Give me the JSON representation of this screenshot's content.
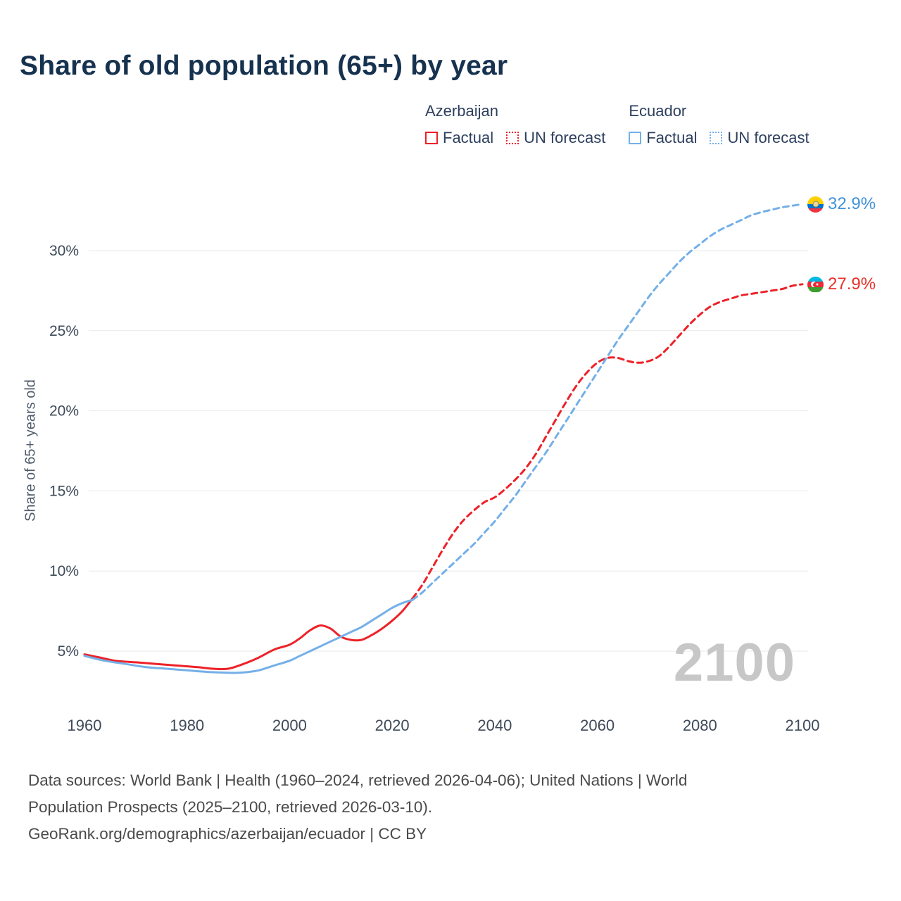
{
  "title": "Share of old population (65+) by year",
  "legend": {
    "groups": [
      {
        "country": "Azerbaijan",
        "factual_label": "Factual",
        "forecast_label": "UN forecast",
        "color": "#ed2228"
      },
      {
        "country": "Ecuador",
        "factual_label": "Factual",
        "forecast_label": "UN forecast",
        "color": "#74b0e8"
      }
    ]
  },
  "end_labels": [
    {
      "country": "Ecuador",
      "value": "32.9%",
      "color": "#4292d8"
    },
    {
      "country": "Azerbaijan",
      "value": "27.9%",
      "color": "#e8302a"
    }
  ],
  "watermark": "2100",
  "y_axis": {
    "label": "Share of 65+ years old",
    "ticks": [
      "5%",
      "10%",
      "15%",
      "20%",
      "25%",
      "30%"
    ],
    "tick_values": [
      5,
      10,
      15,
      20,
      25,
      30
    ]
  },
  "x_axis": {
    "ticks": [
      1960,
      1980,
      2000,
      2020,
      2040,
      2060,
      2080,
      2100
    ]
  },
  "footer": {
    "lines": [
      "Data sources: World Bank | Health (1960–2024, retrieved 2026-04-06); United Nations | World",
      "Population Prospects (2025–2100, retrieved 2026-03-10).",
      "GeoRank.org/demographics/azerbaijan/ecuador | CC BY"
    ]
  },
  "chart_data": {
    "type": "line",
    "title": "Share of old population (65+) by year",
    "xlabel": "",
    "ylabel": "Share of 65+ years old",
    "xlim": [
      1960,
      2100
    ],
    "ylim": [
      3,
      34
    ],
    "grid": "horizontal",
    "legend_position": "top-right",
    "series": [
      {
        "name": "Azerbaijan Factual",
        "color": "#ed2228",
        "style": "solid",
        "points": [
          [
            1960,
            4.8
          ],
          [
            1963,
            4.6
          ],
          [
            1966,
            4.4
          ],
          [
            1970,
            4.3
          ],
          [
            1974,
            4.2
          ],
          [
            1978,
            4.1
          ],
          [
            1982,
            4.0
          ],
          [
            1985,
            3.9
          ],
          [
            1988,
            3.9
          ],
          [
            1991,
            4.2
          ],
          [
            1994,
            4.6
          ],
          [
            1997,
            5.1
          ],
          [
            2000,
            5.4
          ],
          [
            2002,
            5.8
          ],
          [
            2004,
            6.3
          ],
          [
            2006,
            6.6
          ],
          [
            2008,
            6.4
          ],
          [
            2010,
            5.9
          ],
          [
            2012,
            5.7
          ],
          [
            2014,
            5.7
          ],
          [
            2016,
            6.0
          ],
          [
            2018,
            6.4
          ],
          [
            2020,
            6.9
          ],
          [
            2022,
            7.5
          ],
          [
            2024,
            8.3
          ]
        ]
      },
      {
        "name": "Azerbaijan UN forecast",
        "color": "#ed2228",
        "style": "dashed",
        "points": [
          [
            2024,
            8.3
          ],
          [
            2026,
            9.2
          ],
          [
            2028,
            10.3
          ],
          [
            2030,
            11.4
          ],
          [
            2032,
            12.4
          ],
          [
            2034,
            13.2
          ],
          [
            2036,
            13.8
          ],
          [
            2038,
            14.3
          ],
          [
            2040,
            14.6
          ],
          [
            2042,
            15.1
          ],
          [
            2044,
            15.7
          ],
          [
            2046,
            16.4
          ],
          [
            2048,
            17.3
          ],
          [
            2050,
            18.4
          ],
          [
            2052,
            19.5
          ],
          [
            2054,
            20.6
          ],
          [
            2056,
            21.6
          ],
          [
            2058,
            22.4
          ],
          [
            2060,
            23.0
          ],
          [
            2062,
            23.3
          ],
          [
            2064,
            23.3
          ],
          [
            2066,
            23.1
          ],
          [
            2068,
            23.0
          ],
          [
            2070,
            23.1
          ],
          [
            2072,
            23.4
          ],
          [
            2074,
            24.0
          ],
          [
            2076,
            24.7
          ],
          [
            2078,
            25.4
          ],
          [
            2080,
            26.0
          ],
          [
            2082,
            26.5
          ],
          [
            2084,
            26.8
          ],
          [
            2086,
            27.0
          ],
          [
            2088,
            27.2
          ],
          [
            2090,
            27.3
          ],
          [
            2092,
            27.4
          ],
          [
            2094,
            27.5
          ],
          [
            2096,
            27.6
          ],
          [
            2098,
            27.8
          ],
          [
            2100,
            27.9
          ]
        ]
      },
      {
        "name": "Ecuador Factual",
        "color": "#74b0e8",
        "style": "solid",
        "points": [
          [
            1960,
            4.7
          ],
          [
            1964,
            4.4
          ],
          [
            1968,
            4.2
          ],
          [
            1972,
            4.0
          ],
          [
            1976,
            3.9
          ],
          [
            1980,
            3.8
          ],
          [
            1984,
            3.7
          ],
          [
            1988,
            3.65
          ],
          [
            1990,
            3.65
          ],
          [
            1992,
            3.7
          ],
          [
            1994,
            3.8
          ],
          [
            1996,
            4.0
          ],
          [
            1998,
            4.2
          ],
          [
            2000,
            4.4
          ],
          [
            2002,
            4.7
          ],
          [
            2004,
            5.0
          ],
          [
            2006,
            5.3
          ],
          [
            2008,
            5.6
          ],
          [
            2010,
            5.9
          ],
          [
            2012,
            6.2
          ],
          [
            2014,
            6.5
          ],
          [
            2016,
            6.9
          ],
          [
            2018,
            7.3
          ],
          [
            2020,
            7.7
          ],
          [
            2022,
            8.0
          ],
          [
            2024,
            8.2
          ]
        ]
      },
      {
        "name": "Ecuador UN forecast",
        "color": "#74b0e8",
        "style": "dashed",
        "points": [
          [
            2024,
            8.2
          ],
          [
            2026,
            8.7
          ],
          [
            2028,
            9.3
          ],
          [
            2030,
            9.9
          ],
          [
            2032,
            10.5
          ],
          [
            2034,
            11.1
          ],
          [
            2036,
            11.7
          ],
          [
            2038,
            12.4
          ],
          [
            2040,
            13.1
          ],
          [
            2042,
            13.9
          ],
          [
            2044,
            14.7
          ],
          [
            2046,
            15.6
          ],
          [
            2048,
            16.5
          ],
          [
            2050,
            17.4
          ],
          [
            2052,
            18.4
          ],
          [
            2054,
            19.4
          ],
          [
            2056,
            20.4
          ],
          [
            2058,
            21.4
          ],
          [
            2060,
            22.4
          ],
          [
            2062,
            23.4
          ],
          [
            2064,
            24.4
          ],
          [
            2066,
            25.3
          ],
          [
            2068,
            26.2
          ],
          [
            2070,
            27.1
          ],
          [
            2072,
            27.9
          ],
          [
            2074,
            28.6
          ],
          [
            2076,
            29.3
          ],
          [
            2078,
            29.9
          ],
          [
            2080,
            30.4
          ],
          [
            2082,
            30.9
          ],
          [
            2084,
            31.3
          ],
          [
            2086,
            31.6
          ],
          [
            2088,
            31.9
          ],
          [
            2090,
            32.2
          ],
          [
            2092,
            32.4
          ],
          [
            2094,
            32.55
          ],
          [
            2096,
            32.7
          ],
          [
            2098,
            32.8
          ],
          [
            2100,
            32.9
          ]
        ]
      }
    ],
    "end_annotations": [
      {
        "series": "Ecuador UN forecast",
        "x": 2100,
        "y": 32.9,
        "label": "32.9%"
      },
      {
        "series": "Azerbaijan UN forecast",
        "x": 2100,
        "y": 27.9,
        "label": "27.9%"
      }
    ],
    "watermark": "2100"
  }
}
